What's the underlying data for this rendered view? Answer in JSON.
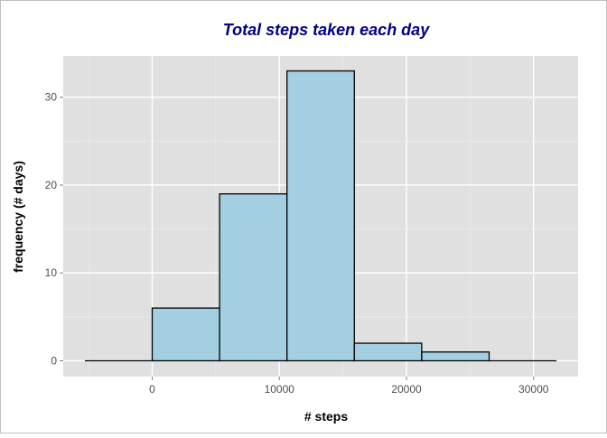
{
  "chart_data": {
    "type": "bar",
    "title": "Total steps taken each day",
    "xlabel": "# steps",
    "ylabel": "frequency (# days)",
    "bins": [
      {
        "start": -5300,
        "end": 0,
        "value": 0
      },
      {
        "start": 0,
        "end": 5300,
        "value": 6
      },
      {
        "start": 5300,
        "end": 10600,
        "value": 19
      },
      {
        "start": 10600,
        "end": 15900,
        "value": 33
      },
      {
        "start": 15900,
        "end": 21200,
        "value": 2
      },
      {
        "start": 21200,
        "end": 26500,
        "value": 1
      },
      {
        "start": 26500,
        "end": 31800,
        "value": 0
      }
    ],
    "xlim": [
      -7000,
      33500
    ],
    "ylim": [
      -1.8,
      34.7
    ],
    "xticks": [
      0,
      10000,
      20000,
      30000
    ],
    "xtick_labels": [
      "0",
      "10000",
      "20000",
      "30000"
    ],
    "yticks": [
      0,
      10,
      20,
      30
    ],
    "ytick_labels": [
      "0",
      "10",
      "20",
      "30"
    ],
    "grid": true,
    "legend": "none",
    "colors": {
      "bar_fill": "#a3cfe0",
      "bar_stroke": "#000000",
      "panel_background": "#e0e0e0",
      "grid_major": "#ffffff",
      "grid_minor": "#ebebeb",
      "title": "#000080"
    }
  }
}
